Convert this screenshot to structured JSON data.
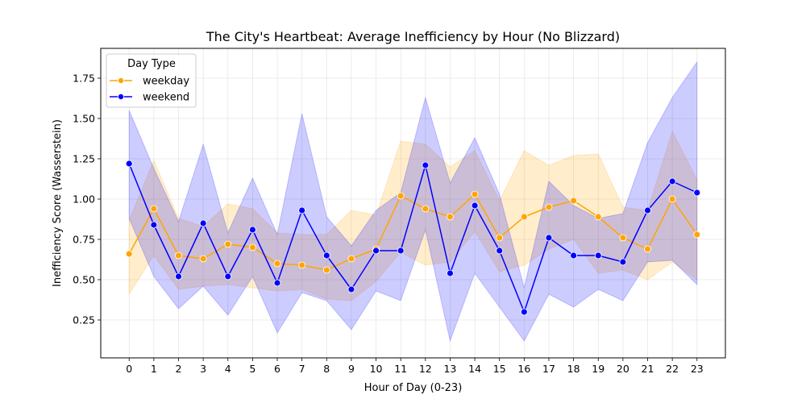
{
  "chart_data": {
    "type": "line",
    "title": "The City's Heartbeat: Average Inefficiency by Hour (No Blizzard)",
    "xlabel": "Hour of Day (0-23)",
    "ylabel": "Inefficiency Score (Wasserstein)",
    "xlim": [
      -1.15,
      24.15
    ],
    "ylim": [
      0.015,
      1.935
    ],
    "x_ticks": [
      0,
      1,
      2,
      3,
      4,
      5,
      6,
      7,
      8,
      9,
      10,
      11,
      12,
      13,
      14,
      15,
      16,
      17,
      18,
      19,
      20,
      21,
      22,
      23
    ],
    "y_ticks": [
      0.25,
      0.5,
      0.75,
      1.0,
      1.25,
      1.5,
      1.75
    ],
    "y_tick_labels": [
      "0.25",
      "0.50",
      "0.75",
      "1.00",
      "1.25",
      "1.50",
      "1.75"
    ],
    "grid": true,
    "legend": {
      "title": "Day Type",
      "placement": "top-left"
    },
    "series": [
      {
        "name": "weekday",
        "color": "#FFA500",
        "x": [
          0,
          1,
          2,
          3,
          4,
          5,
          6,
          7,
          8,
          9,
          10,
          11,
          12,
          13,
          14,
          15,
          16,
          17,
          18,
          19,
          20,
          21,
          22,
          23
        ],
        "values": [
          0.66,
          0.94,
          0.65,
          0.63,
          0.72,
          0.7,
          0.6,
          0.59,
          0.56,
          0.63,
          0.69,
          1.02,
          0.94,
          0.89,
          1.03,
          0.76,
          0.89,
          0.95,
          0.99,
          0.89,
          0.76,
          0.69,
          1.0,
          0.78
        ],
        "ci_low": [
          0.41,
          0.65,
          0.44,
          0.46,
          0.47,
          0.45,
          0.43,
          0.44,
          0.38,
          0.37,
          0.49,
          0.67,
          0.59,
          0.61,
          0.8,
          0.55,
          0.59,
          0.69,
          0.75,
          0.54,
          0.56,
          0.5,
          0.61,
          0.5
        ],
        "ci_high": [
          0.87,
          1.24,
          0.88,
          0.83,
          0.97,
          0.94,
          0.79,
          0.78,
          0.78,
          0.93,
          0.9,
          1.36,
          1.34,
          1.2,
          1.3,
          0.99,
          1.3,
          1.21,
          1.27,
          1.28,
          0.95,
          0.93,
          1.42,
          1.12
        ]
      },
      {
        "name": "weekend",
        "color": "#0000FF",
        "x": [
          0,
          1,
          2,
          3,
          4,
          5,
          6,
          7,
          8,
          9,
          10,
          11,
          12,
          13,
          14,
          15,
          16,
          17,
          18,
          19,
          20,
          21,
          22,
          23
        ],
        "values": [
          1.22,
          0.84,
          0.52,
          0.85,
          0.52,
          0.81,
          0.48,
          0.93,
          0.65,
          0.44,
          0.68,
          0.68,
          1.21,
          0.54,
          0.96,
          0.68,
          0.3,
          0.76,
          0.65,
          0.65,
          0.61,
          0.93,
          1.11,
          1.04
        ],
        "ci_low": [
          0.88,
          0.52,
          0.32,
          0.46,
          0.28,
          0.52,
          0.17,
          0.42,
          0.37,
          0.19,
          0.43,
          0.37,
          0.81,
          0.12,
          0.54,
          0.33,
          0.12,
          0.41,
          0.33,
          0.44,
          0.37,
          0.61,
          0.62,
          0.47
        ],
        "ci_high": [
          1.55,
          1.19,
          0.86,
          1.34,
          0.79,
          1.13,
          0.78,
          1.53,
          0.89,
          0.71,
          0.93,
          1.04,
          1.63,
          1.1,
          1.38,
          1.03,
          0.45,
          1.11,
          0.96,
          0.88,
          0.91,
          1.35,
          1.63,
          1.85
        ]
      }
    ]
  }
}
